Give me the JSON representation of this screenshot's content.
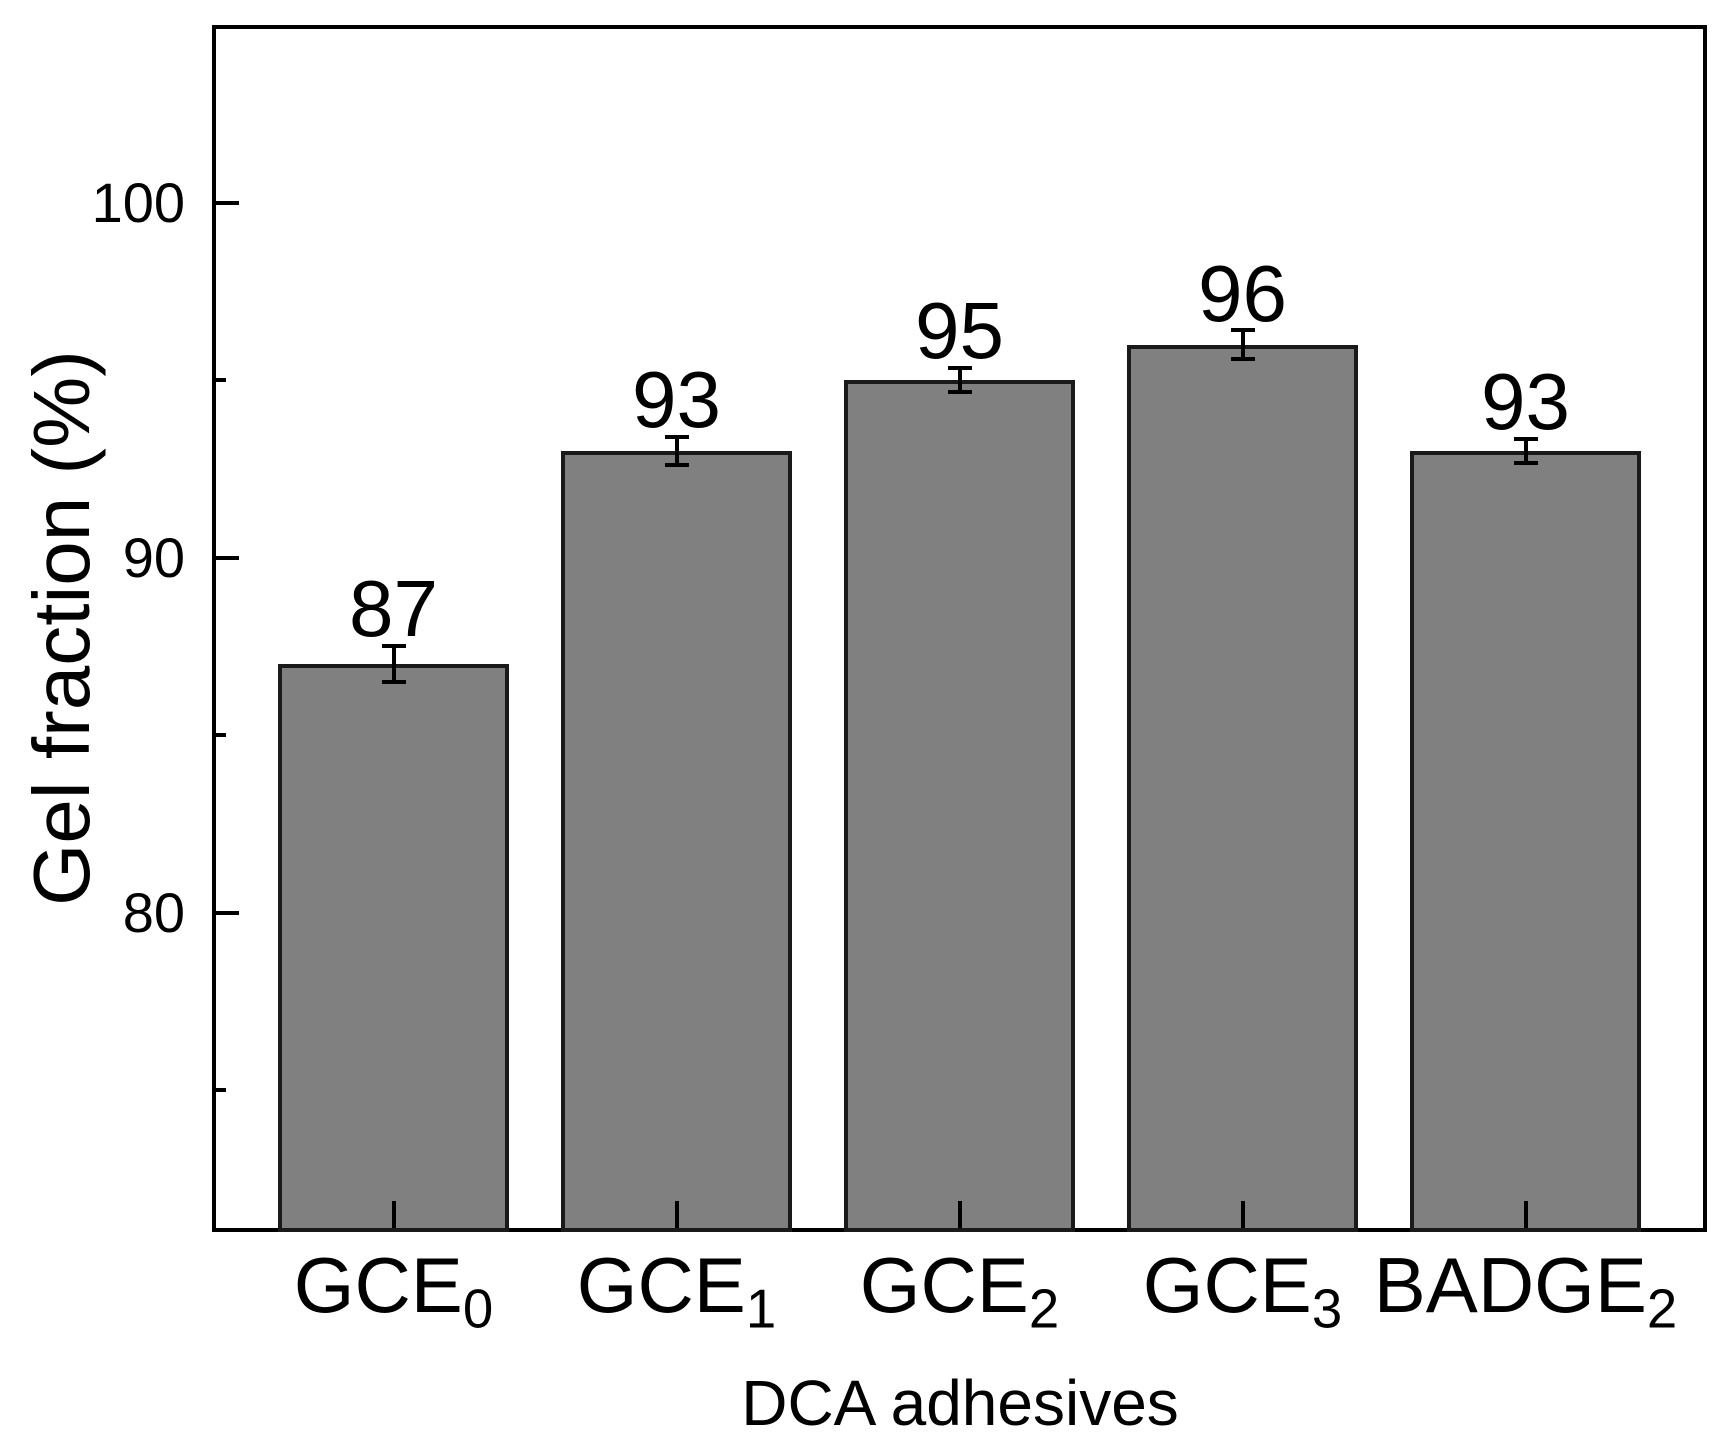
{
  "figure": {
    "background_color": "#ffffff",
    "text_color": "#000000"
  },
  "chart_data": {
    "type": "bar",
    "title": "",
    "xlabel": "DCA adhesives",
    "ylabel": "Gel fraction (%)",
    "categories": [
      {
        "base": "GCE",
        "sub": "0"
      },
      {
        "base": "GCE",
        "sub": "1"
      },
      {
        "base": "GCE",
        "sub": "2"
      },
      {
        "base": "GCE",
        "sub": "3"
      },
      {
        "base": "BADGE",
        "sub": "2"
      }
    ],
    "values": [
      87,
      93,
      95,
      96,
      93
    ],
    "errors": [
      0.5,
      0.4,
      0.35,
      0.4,
      0.35
    ],
    "bar_value_labels": [
      "87",
      "93",
      "95",
      "96",
      "93"
    ],
    "ylim": [
      71,
      105
    ],
    "yticks_major": [
      80,
      90,
      100
    ],
    "ytick_labels": [
      "80",
      "90",
      "100"
    ],
    "yticks_minor": [
      75,
      85,
      95
    ],
    "bar_fill_color": "#808080",
    "bar_edge_color": "#1a1a1a",
    "axis_color": "#000000",
    "error_bar_color": "#000000",
    "grid": false,
    "legend": null
  }
}
